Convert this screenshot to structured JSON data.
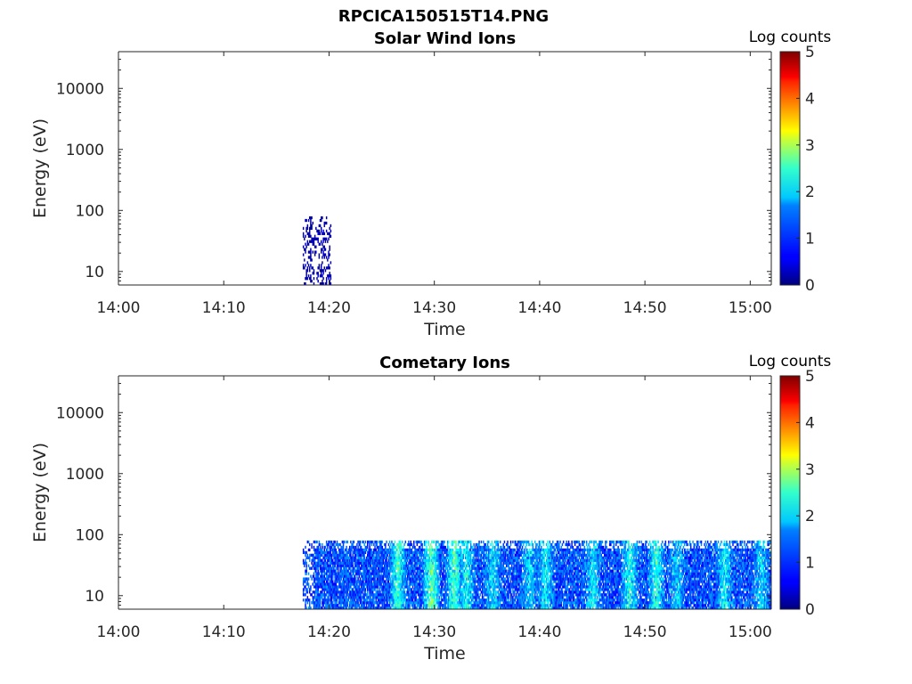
{
  "figure": {
    "title": "RPCICA150515T14.PNG"
  },
  "chart_data": [
    {
      "type": "heatmap",
      "title": "Solar Wind Ions",
      "xlabel": "Time",
      "ylabel": "Energy (eV)",
      "x_range": [
        "14:00",
        "15:02"
      ],
      "x_ticks": [
        "14:00",
        "14:10",
        "14:20",
        "14:30",
        "14:40",
        "14:50",
        "15:00"
      ],
      "y_scale": "log",
      "y_range": [
        6,
        40000
      ],
      "y_ticks": [
        10,
        100,
        1000,
        10000
      ],
      "y_tick_labels": [
        "10",
        "100",
        "1000",
        "10000"
      ],
      "colorbar": {
        "label": "Log counts",
        "min": 0,
        "max": 5,
        "ticks": [
          "0",
          "1",
          "2",
          "3",
          "4",
          "5"
        ],
        "colormap": "jet"
      },
      "data_extent": {
        "start": "14:17:30",
        "end": "14:20:10",
        "energy_min": 6,
        "energy_max": 80,
        "typical_log_counts": 0.2
      }
    },
    {
      "type": "heatmap",
      "title": "Cometary Ions",
      "xlabel": "Time",
      "ylabel": "Energy (eV)",
      "x_range": [
        "14:00",
        "15:02"
      ],
      "x_ticks": [
        "14:00",
        "14:10",
        "14:20",
        "14:30",
        "14:40",
        "14:50",
        "15:00"
      ],
      "y_scale": "log",
      "y_range": [
        6,
        40000
      ],
      "y_ticks": [
        10,
        100,
        1000,
        10000
      ],
      "y_tick_labels": [
        "10",
        "100",
        "1000",
        "10000"
      ],
      "colorbar": {
        "label": "Log counts",
        "min": 0,
        "max": 5,
        "ticks": [
          "0",
          "1",
          "2",
          "3",
          "4",
          "5"
        ],
        "colormap": "jet"
      },
      "data_extent": {
        "start": "14:17:30",
        "end": "15:02:00",
        "energy_min": 6,
        "energy_max": 80,
        "typical_log_counts": 1.0,
        "peak_log_counts": 2.8
      },
      "bright_bands": [
        {
          "time": "14:26:30",
          "log_counts": 2.5
        },
        {
          "time": "14:29:40",
          "log_counts": 2.8
        },
        {
          "time": "14:31:50",
          "log_counts": 2.7
        },
        {
          "time": "14:33:00",
          "log_counts": 2.2
        },
        {
          "time": "14:35:30",
          "log_counts": 2.0
        },
        {
          "time": "14:39:00",
          "log_counts": 1.9
        },
        {
          "time": "14:40:30",
          "log_counts": 2.1
        },
        {
          "time": "14:45:00",
          "log_counts": 2.0
        },
        {
          "time": "14:48:30",
          "log_counts": 2.3
        },
        {
          "time": "14:51:00",
          "log_counts": 2.4
        },
        {
          "time": "14:53:00",
          "log_counts": 1.8
        },
        {
          "time": "14:57:30",
          "log_counts": 2.1
        },
        {
          "time": "15:01:00",
          "log_counts": 1.9
        }
      ]
    }
  ]
}
